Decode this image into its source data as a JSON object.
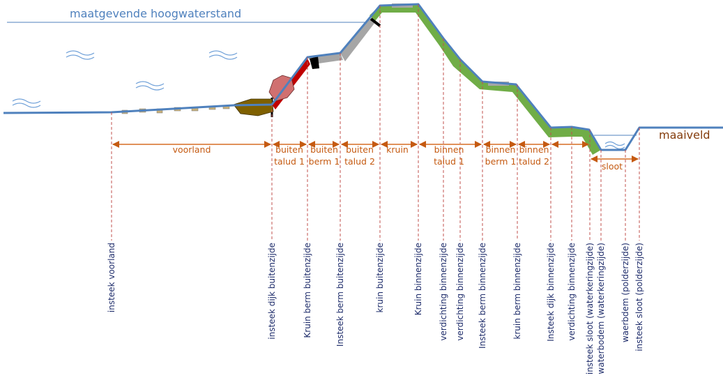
{
  "water_level_label": "maatgevende hoogwaterstand",
  "ground_label": "maaiveld",
  "zones": [
    {
      "line1": "voorland",
      "line2": ""
    },
    {
      "line1": "buiten",
      "line2": "talud 1"
    },
    {
      "line1": "buiten",
      "line2": "berm 1"
    },
    {
      "line1": "buiten",
      "line2": "talud 2"
    },
    {
      "line1": "kruin",
      "line2": ""
    },
    {
      "line1": "binnen",
      "line2": "talud 1"
    },
    {
      "line1": "binnen",
      "line2": "berm 1"
    },
    {
      "line1": "binnen",
      "line2": "talud 2"
    },
    {
      "line1": "",
      "line2": ""
    },
    {
      "line1": "sloot",
      "line2": ""
    }
  ],
  "points": [
    "insteek voorland",
    "insteek dijk buitenzijde",
    "Kruin berm buitenzijde",
    "Insteek berm buitenzijde",
    "kruin buitenzijde",
    "Kruin binnenzijde",
    "verdichting binnenzijde",
    "verdichting binnenzijde",
    "Insteek berm binnenzijde",
    "kruin berm binnenzijde",
    "Insteek  dijk binnenzijde",
    "verdichting binnenzijde",
    "insteek sloot (waterkeringzijde)",
    "waterbodem (waterkeringzijde)",
    "waerbdem (polderzijde)",
    "insteek sloot (polderzijde)"
  ],
  "colors": {
    "profile": "#4f81bd",
    "green": "#70ad47",
    "gray": "#a6a6a6",
    "red": "#c00000",
    "dim": "#c55a11",
    "text": "#1f2d6b"
  }
}
